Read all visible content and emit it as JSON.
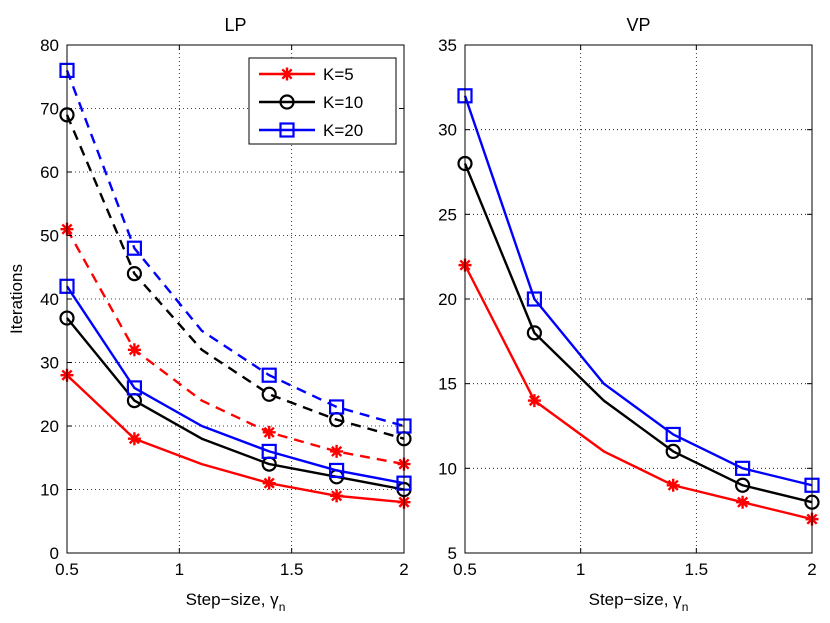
{
  "figure": {
    "type": "line-chart-pair"
  },
  "chart_data": [
    {
      "type": "line",
      "title": "LP",
      "xlabel": "Step−size, γ",
      "xlabel_sub": "n",
      "ylabel": "Iterations",
      "xlim": [
        0.5,
        2
      ],
      "ylim": [
        0,
        80
      ],
      "xticks": [
        0.5,
        1,
        1.5,
        2
      ],
      "xtick_labels": [
        "0.5",
        "1",
        "1.5",
        "2"
      ],
      "yticks": [
        0,
        10,
        20,
        30,
        40,
        50,
        60,
        70,
        80
      ],
      "ytick_labels": [
        "0",
        "10",
        "20",
        "30",
        "40",
        "50",
        "60",
        "70",
        "80"
      ],
      "grid": true,
      "legend_position": "top-right",
      "legend": [
        {
          "label": "K=5",
          "color": "#ff0000",
          "marker": "asterisk"
        },
        {
          "label": "K=10",
          "color": "#000000",
          "marker": "circle"
        },
        {
          "label": "K=20",
          "color": "#0000ff",
          "marker": "square"
        }
      ],
      "x": [
        0.5,
        0.8,
        1.1,
        1.4,
        1.7,
        2.0
      ],
      "marker_indices": [
        0,
        1,
        3,
        4,
        5
      ],
      "series": [
        {
          "name": "K=5",
          "style": "solid",
          "color": "#ff0000",
          "marker": "asterisk",
          "values": [
            28,
            18,
            14,
            11,
            9,
            8
          ]
        },
        {
          "name": "K=10",
          "style": "solid",
          "color": "#000000",
          "marker": "circle",
          "values": [
            37,
            24,
            18,
            14,
            12,
            10
          ]
        },
        {
          "name": "K=20",
          "style": "solid",
          "color": "#0000ff",
          "marker": "square",
          "values": [
            42,
            26,
            20,
            16,
            13,
            11
          ]
        },
        {
          "name": "K=5",
          "style": "dashed",
          "color": "#ff0000",
          "marker": "asterisk",
          "values": [
            51,
            32,
            24,
            19,
            16,
            14
          ]
        },
        {
          "name": "K=10",
          "style": "dashed",
          "color": "#000000",
          "marker": "circle",
          "values": [
            69,
            44,
            32,
            25,
            21,
            18
          ]
        },
        {
          "name": "K=20",
          "style": "dashed",
          "color": "#0000ff",
          "marker": "square",
          "values": [
            76,
            48,
            35,
            28,
            23,
            20
          ]
        }
      ]
    },
    {
      "type": "line",
      "title": "VP",
      "xlabel": "Step−size, γ",
      "xlabel_sub": "n",
      "ylabel": "",
      "xlim": [
        0.5,
        2
      ],
      "ylim": [
        5,
        35
      ],
      "xticks": [
        0.5,
        1,
        1.5,
        2
      ],
      "xtick_labels": [
        "0.5",
        "1",
        "1.5",
        "2"
      ],
      "yticks": [
        5,
        10,
        15,
        20,
        25,
        30,
        35
      ],
      "ytick_labels": [
        "5",
        "10",
        "15",
        "20",
        "25",
        "30",
        "35"
      ],
      "grid": true,
      "x": [
        0.5,
        0.8,
        1.1,
        1.4,
        1.7,
        2.0
      ],
      "marker_indices": [
        0,
        1,
        3,
        4,
        5
      ],
      "series": [
        {
          "name": "K=5",
          "style": "solid",
          "color": "#ff0000",
          "marker": "asterisk",
          "values": [
            22,
            14,
            11,
            9,
            8,
            7
          ]
        },
        {
          "name": "K=10",
          "style": "solid",
          "color": "#000000",
          "marker": "circle",
          "values": [
            28,
            18,
            14,
            11,
            9,
            8
          ]
        },
        {
          "name": "K=20",
          "style": "solid",
          "color": "#0000ff",
          "marker": "square",
          "values": [
            32,
            20,
            15,
            12,
            10,
            9
          ]
        }
      ]
    }
  ]
}
